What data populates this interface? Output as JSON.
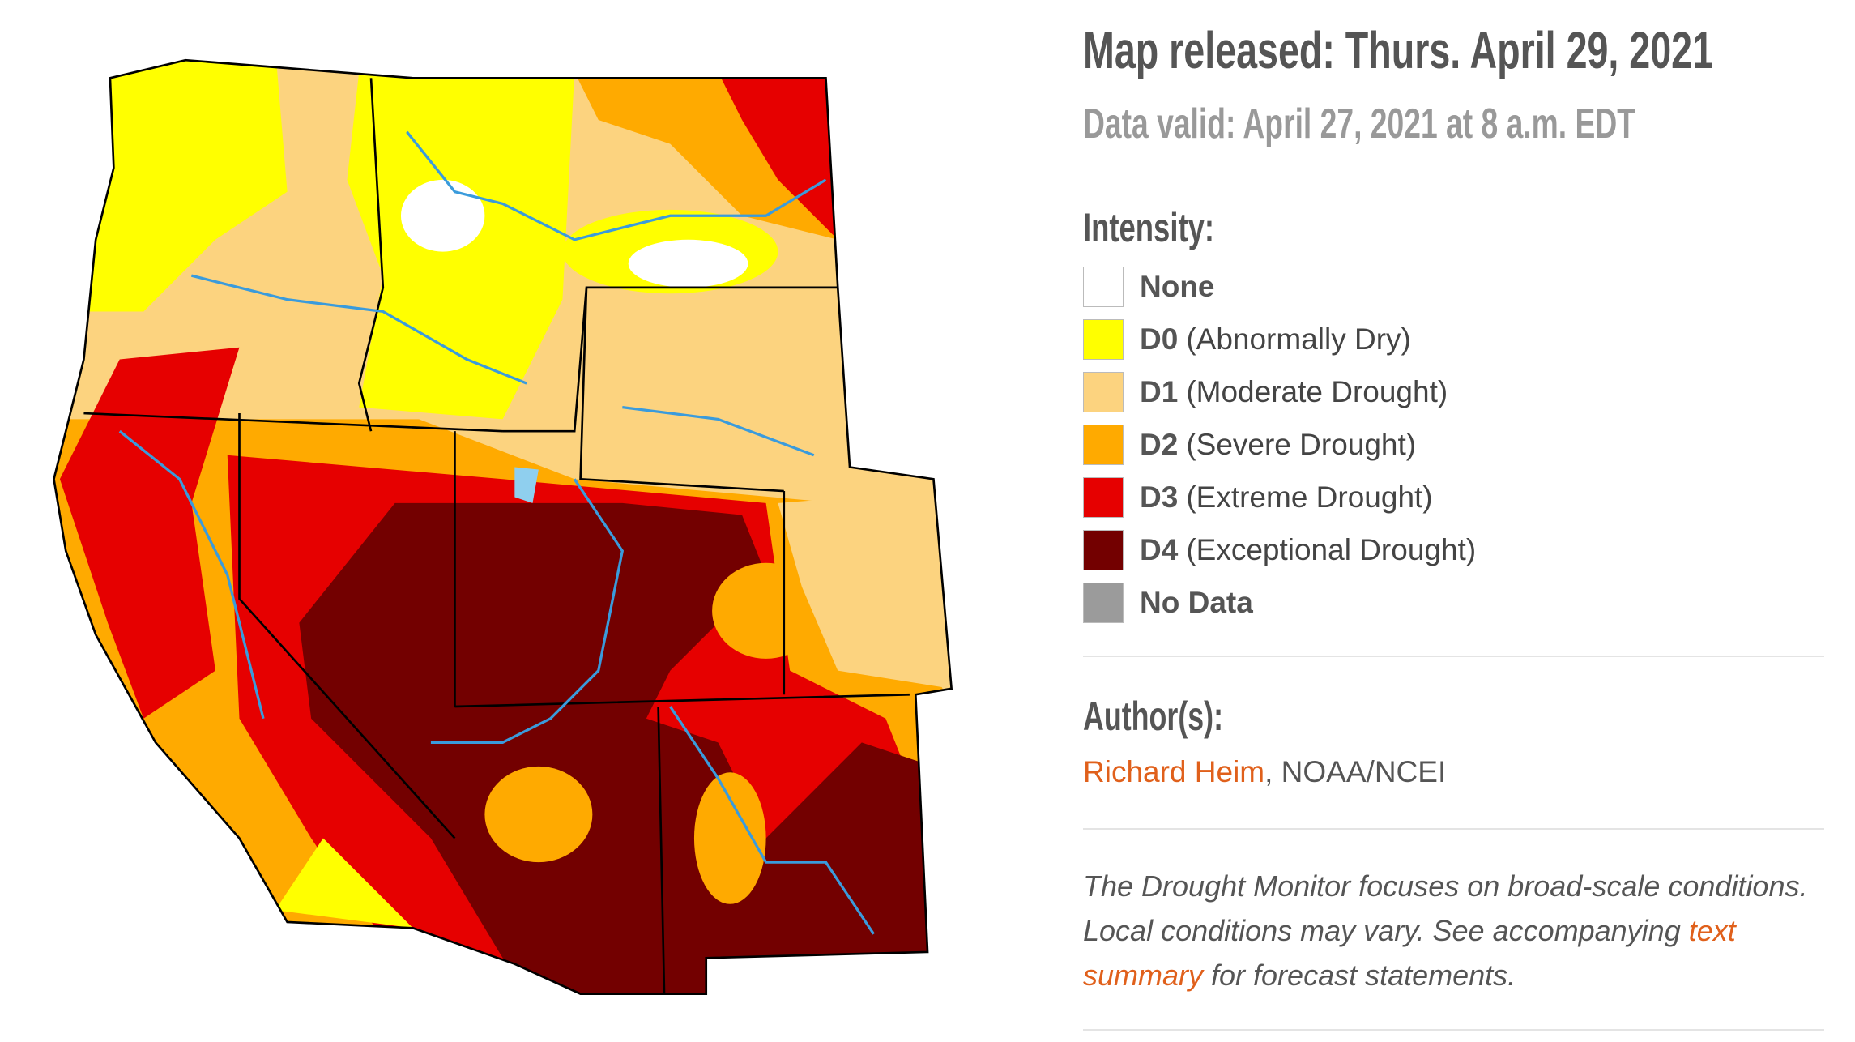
{
  "header": {
    "released": "Map released: Thurs. April 29, 2021",
    "valid": "Data valid: April 27, 2021 at 8 a.m. EDT"
  },
  "legend": {
    "title": "Intensity:",
    "items": [
      {
        "code": "None",
        "color": "#ffffff"
      },
      {
        "code": "D0",
        "label": "(Abnormally Dry)",
        "color": "#ffff00"
      },
      {
        "code": "D1",
        "label": "(Moderate Drought)",
        "color": "#fcd37f"
      },
      {
        "code": "D2",
        "label": "(Severe Drought)",
        "color": "#ffaa00"
      },
      {
        "code": "D3",
        "label": "(Extreme Drought)",
        "color": "#e60000"
      },
      {
        "code": "D4",
        "label": "(Exceptional Drought)",
        "color": "#730000"
      },
      {
        "code": "No Data",
        "color": "#9b9b9b"
      }
    ]
  },
  "author": {
    "title": "Author(s):",
    "name": "Richard Heim",
    "affiliation": ", NOAA/NCEI"
  },
  "note": {
    "before": "The Drought Monitor focuses on broad-scale conditions. Local conditions may vary. See accompanying ",
    "link": "text summary",
    "after": " for forecast statements."
  }
}
